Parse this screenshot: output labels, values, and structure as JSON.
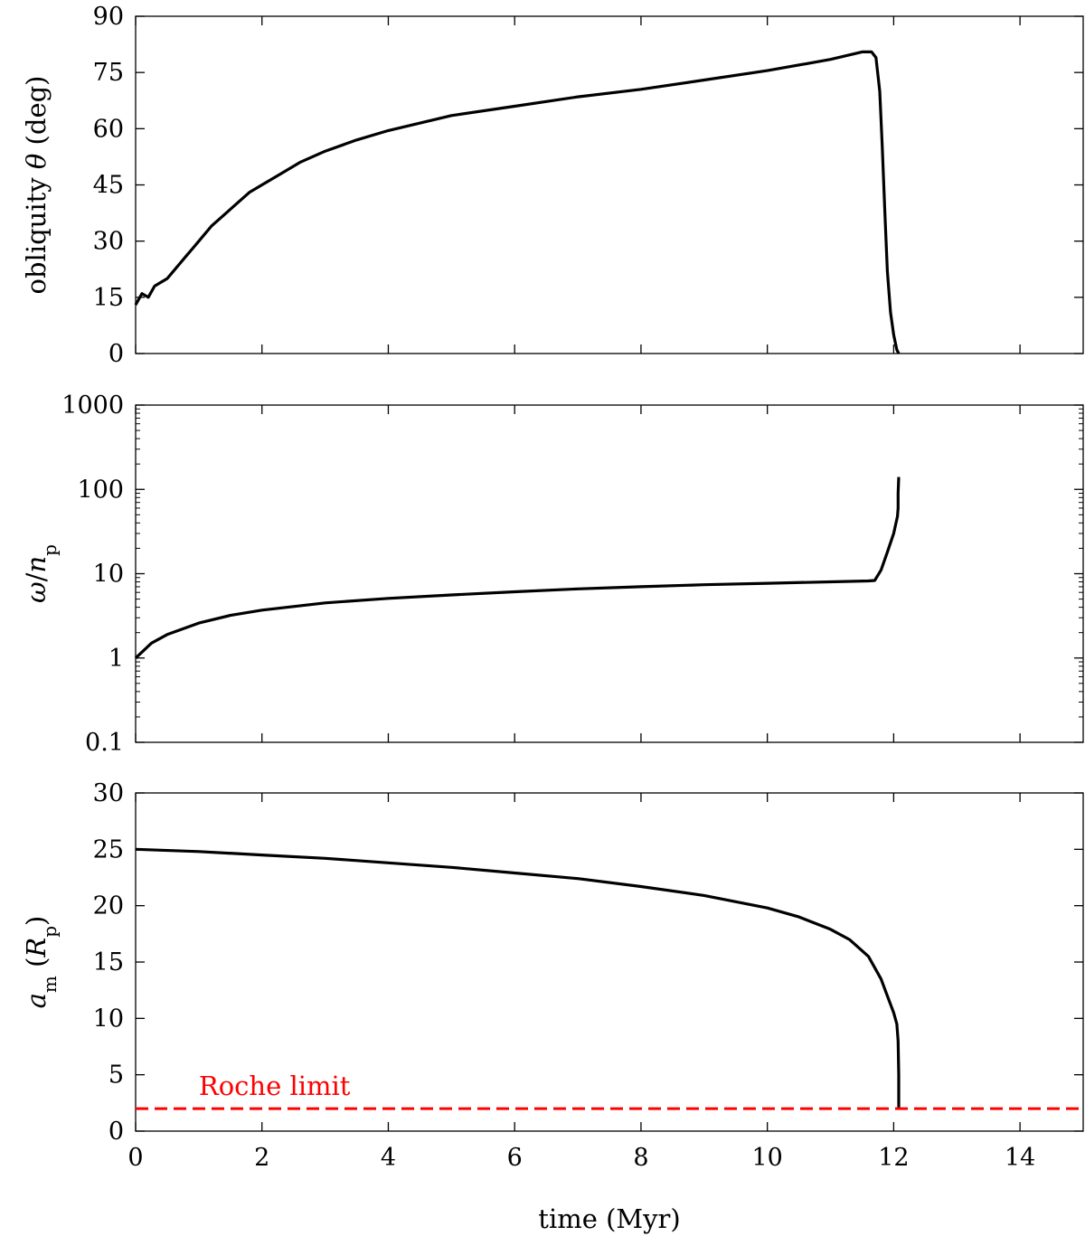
{
  "chart_data": [
    {
      "type": "line",
      "ylabel": "obliquity θ (deg)",
      "xlabel": "",
      "xlim": [
        0,
        15
      ],
      "ylim": [
        0,
        90
      ],
      "yscale": "linear",
      "xticks": [
        0,
        2,
        4,
        6,
        8,
        10,
        12,
        14
      ],
      "xticklabels": [
        "",
        "",
        "",
        "",
        "",
        "",
        "",
        ""
      ],
      "yticks": [
        0,
        15,
        30,
        45,
        60,
        75,
        90
      ],
      "yticklabels": [
        "0",
        "15",
        "30",
        "45",
        "60",
        "75",
        "90"
      ],
      "grid": false,
      "series": [
        {
          "color": "#000000",
          "x": [
            0,
            0.1,
            0.2,
            0.3,
            0.4,
            0.5,
            0.6,
            0.7,
            0.8,
            0.9,
            1.0,
            1.2,
            1.4,
            1.6,
            1.8,
            2.0,
            2.3,
            2.6,
            3.0,
            3.5,
            4.0,
            5.0,
            6.0,
            7.0,
            8.0,
            9.0,
            10.0,
            11.0,
            11.5,
            11.65,
            11.72,
            11.78,
            11.82,
            11.86,
            11.9,
            11.95,
            12.0,
            12.05,
            12.08
          ],
          "y": [
            13,
            16,
            15,
            18,
            19,
            20,
            22,
            24,
            26,
            28,
            30,
            34,
            37,
            40,
            43,
            45,
            48,
            51,
            54,
            57,
            59.5,
            63.5,
            66,
            68.5,
            70.5,
            73,
            75.5,
            78.5,
            80.5,
            80.5,
            79,
            70,
            55,
            38,
            22,
            11,
            5,
            1,
            0
          ]
        }
      ]
    },
    {
      "type": "line",
      "ylabel": "ω/n_p",
      "xlabel": "",
      "xlim": [
        0,
        15
      ],
      "ylim": [
        0.1,
        1000
      ],
      "yscale": "log",
      "xticks": [
        0,
        2,
        4,
        6,
        8,
        10,
        12,
        14
      ],
      "xticklabels": [
        "",
        "",
        "",
        "",
        "",
        "",
        "",
        ""
      ],
      "yticks": [
        0.1,
        1,
        10,
        100,
        1000
      ],
      "yticklabels": [
        "0.1",
        "1",
        "10",
        "100",
        "1000"
      ],
      "grid": false,
      "series": [
        {
          "color": "#000000",
          "x": [
            0,
            0.25,
            0.5,
            1.0,
            1.5,
            2.0,
            3.0,
            4.0,
            5.0,
            6.0,
            7.0,
            8.0,
            9.0,
            10.0,
            11.0,
            11.6,
            11.7,
            11.8,
            11.9,
            12.0,
            12.06,
            12.07,
            12.07,
            12.08
          ],
          "y": [
            1.0,
            1.5,
            1.9,
            2.6,
            3.2,
            3.7,
            4.5,
            5.1,
            5.6,
            6.1,
            6.6,
            7.0,
            7.4,
            7.7,
            8.0,
            8.2,
            8.3,
            11,
            18,
            30,
            48,
            60,
            90,
            140
          ]
        }
      ]
    },
    {
      "type": "line",
      "ylabel": "a_m (R_p)",
      "xlabel": "time (Myr)",
      "xlim": [
        0,
        15
      ],
      "ylim": [
        0,
        30
      ],
      "yscale": "linear",
      "xticks": [
        0,
        2,
        4,
        6,
        8,
        10,
        12,
        14
      ],
      "xticklabels": [
        "0",
        "2",
        "4",
        "6",
        "8",
        "10",
        "12",
        "14"
      ],
      "yticks": [
        0,
        5,
        10,
        15,
        20,
        25,
        30
      ],
      "yticklabels": [
        "0",
        "5",
        "10",
        "15",
        "20",
        "25",
        "30"
      ],
      "grid": false,
      "series": [
        {
          "color": "#000000",
          "x": [
            0,
            1,
            2,
            3,
            4,
            5,
            6,
            7,
            8,
            9,
            10,
            10.5,
            11.0,
            11.3,
            11.6,
            11.8,
            11.9,
            12.0,
            12.05,
            12.07,
            12.08,
            12.08
          ],
          "y": [
            25,
            24.8,
            24.5,
            24.2,
            23.8,
            23.4,
            22.9,
            22.4,
            21.7,
            20.9,
            19.8,
            19.0,
            17.9,
            17.0,
            15.5,
            13.5,
            12.0,
            10.5,
            9.5,
            8.0,
            5.0,
            2.0
          ]
        },
        {
          "color": "#ff0000",
          "style": "dashed",
          "x": [
            0,
            15
          ],
          "y": [
            2,
            2
          ]
        }
      ],
      "annotations": [
        {
          "text": "Roche limit",
          "x": 1.0,
          "y": 3.2,
          "color": "#ff0000"
        }
      ]
    }
  ]
}
